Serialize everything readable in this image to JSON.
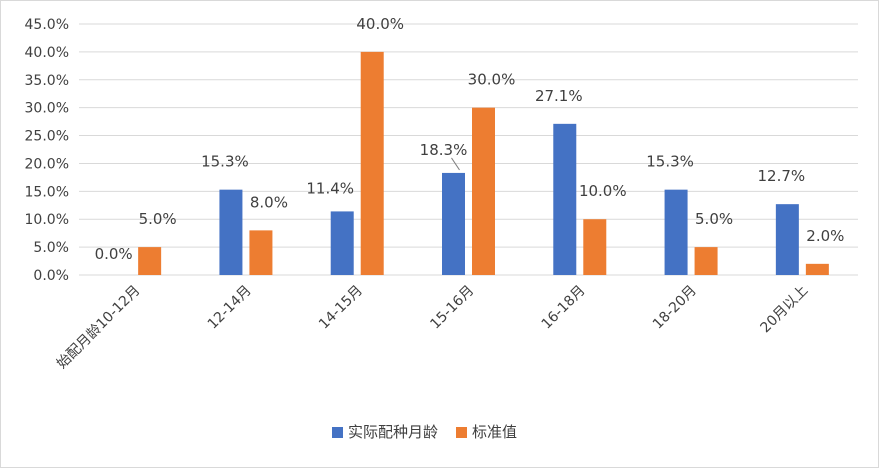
{
  "chart_data": {
    "type": "bar",
    "categories": [
      "始配月龄10-12月",
      "12-14月",
      "14-15月",
      "15-16月",
      "16-18月",
      "18-20月",
      "20月以上"
    ],
    "series": [
      {
        "name": "实际配种月龄",
        "color": "#4472C4",
        "values": [
          0.0,
          15.3,
          11.4,
          18.3,
          27.1,
          15.3,
          12.7
        ],
        "labels": [
          "0.0%",
          "15.3%",
          "11.4%",
          "18.3%",
          "27.1%",
          "15.3%",
          "12.7%"
        ]
      },
      {
        "name": "标准值",
        "color": "#ED7D31",
        "values": [
          5.0,
          8.0,
          40.0,
          30.0,
          10.0,
          5.0,
          2.0
        ],
        "labels": [
          "5.0%",
          "8.0%",
          "40.0%",
          "30.0%",
          "10.0%",
          "5.0%",
          "2.0%"
        ]
      }
    ],
    "yticks": [
      "0.0%",
      "5.0%",
      "10.0%",
      "15.0%",
      "20.0%",
      "25.0%",
      "30.0%",
      "35.0%",
      "40.0%",
      "45.0%"
    ],
    "ylim": [
      0,
      45
    ],
    "grid": true,
    "legend_position": "bottom",
    "title": "",
    "xlabel": "",
    "ylabel": ""
  }
}
